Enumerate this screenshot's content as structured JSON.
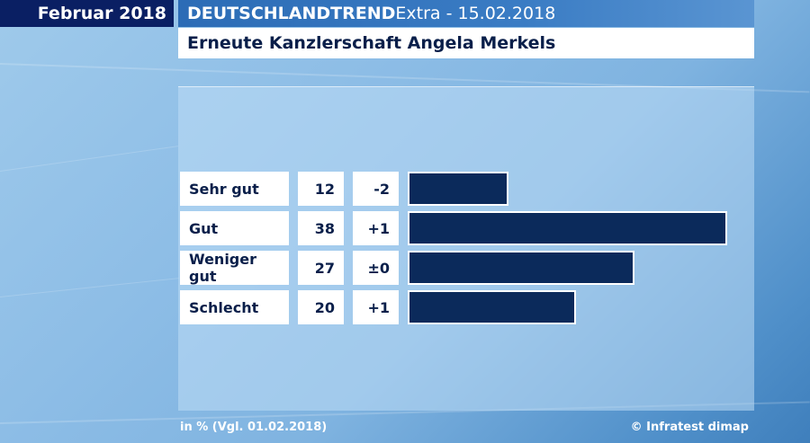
{
  "header": {
    "date_label": "Februar 2018",
    "title_bold": "DEUTSCHLANDTREND",
    "title_rest": " Extra - 15.02.2018"
  },
  "subtitle": "Erneute Kanzlerschaft Angela Merkels",
  "chart_data": {
    "type": "bar",
    "orientation": "horizontal",
    "title": "Erneute Kanzlerschaft Angela Merkels",
    "categories": [
      "Sehr gut",
      "Gut",
      "Weniger gut",
      "Schlecht"
    ],
    "values": [
      12,
      38,
      27,
      20
    ],
    "changes": [
      "-2",
      "+1",
      "±0",
      "+1"
    ],
    "unit": "%",
    "xlim": [
      0,
      38
    ],
    "grid": false,
    "bar_color": "#0b2a5b"
  },
  "footer": {
    "note": "in % (Vgl. 01.02.2018)",
    "source": "© Infratest dimap"
  }
}
